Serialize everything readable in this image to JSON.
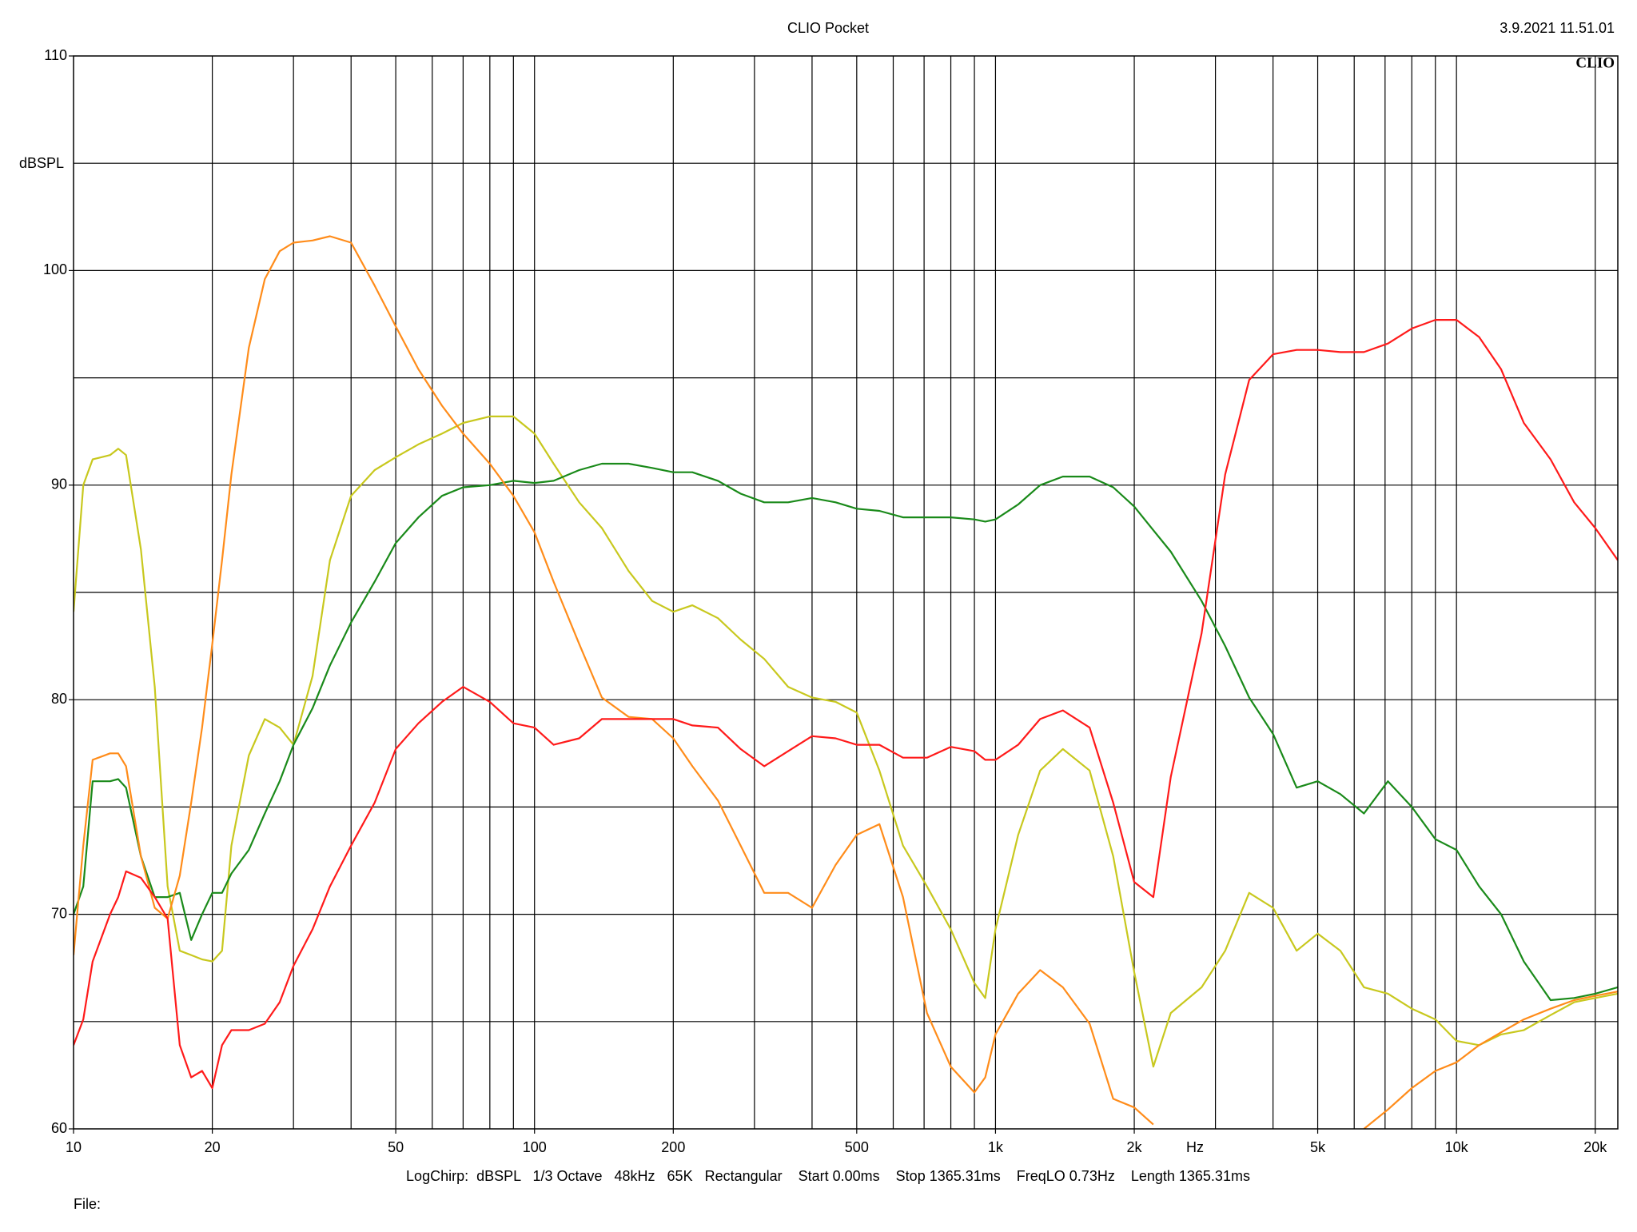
{
  "chart_data": {
    "type": "line",
    "title": "CLIO Pocket",
    "timestamp": "3.9.2021 11.51.01",
    "logo": "CLIO",
    "y_label": "dBSPL",
    "x_label": "Hz",
    "footer": "LogChirp:  dBSPL   1/3 Octave   48kHz   65K   Rectangular    Start 0.00ms    Stop 1365.31ms    FreqLO 0.73Hz    Length 1365.31ms",
    "file_label": "File:",
    "xscale": "log",
    "xlim": [
      10,
      22387
    ],
    "ylim": [
      60,
      110
    ],
    "xticks": [
      10,
      20,
      50,
      100,
      200,
      500,
      {
        "value": 1000,
        "label": "1k"
      },
      {
        "value": 2000,
        "label": "2k"
      },
      {
        "value": 5000,
        "label": "5k"
      },
      {
        "value": 10000,
        "label": "10k"
      },
      {
        "value": 20000,
        "label": "20k"
      }
    ],
    "yticks": [
      60,
      70,
      80,
      90,
      100,
      110
    ],
    "xgrid": [
      20,
      30,
      40,
      50,
      60,
      70,
      80,
      90,
      100,
      200,
      300,
      400,
      500,
      600,
      700,
      800,
      900,
      1000,
      2000,
      3000,
      4000,
      5000,
      6000,
      7000,
      8000,
      9000,
      10000,
      20000
    ],
    "ygrid": [
      65,
      70,
      75,
      80,
      85,
      90,
      95,
      100,
      105
    ],
    "x": [
      10,
      10.5,
      11,
      12,
      12.5,
      13,
      14,
      15,
      16,
      17,
      18,
      19,
      20,
      21,
      22,
      24,
      26,
      28,
      30,
      33,
      36,
      40,
      45,
      50,
      56,
      63,
      70,
      80,
      90,
      100,
      110,
      125,
      140,
      160,
      180,
      200,
      220,
      250,
      280,
      315,
      355,
      400,
      450,
      500,
      560,
      630,
      710,
      800,
      900,
      950,
      1000,
      1120,
      1250,
      1400,
      1600,
      1800,
      2000,
      2200,
      2400,
      2800,
      3150,
      3550,
      4000,
      4500,
      5000,
      5600,
      6300,
      7100,
      8000,
      9000,
      10000,
      11200,
      12500,
      14000,
      16000,
      18000,
      20000,
      22387
    ],
    "series": [
      {
        "color": "#c8c81e",
        "values": [
          84.1,
          90.0,
          91.2,
          91.4,
          91.7,
          91.4,
          87.0,
          80.6,
          71.3,
          68.3,
          68.1,
          67.9,
          67.8,
          68.3,
          73.2,
          77.4,
          79.1,
          78.7,
          77.9,
          81.1,
          86.5,
          89.5,
          90.7,
          91.3,
          91.9,
          92.4,
          92.9,
          93.2,
          93.2,
          92.4,
          91.0,
          89.2,
          88.0,
          86.0,
          84.6,
          84.1,
          84.4,
          83.8,
          82.8,
          81.9,
          80.6,
          80.1,
          79.9,
          79.4,
          76.7,
          73.2,
          71.3,
          69.3,
          66.8,
          66.1,
          69.3,
          73.7,
          76.7,
          77.7,
          76.7,
          72.7,
          67.3,
          62.9,
          65.4,
          66.6,
          68.3,
          71.0,
          70.3,
          68.3,
          69.1,
          68.3,
          66.6,
          66.3,
          65.6,
          65.1,
          64.1,
          63.9,
          64.4,
          64.6,
          65.3,
          65.9,
          66.1,
          66.3
        ]
      },
      {
        "color": "#1a8a1a",
        "values": [
          70.0,
          71.3,
          76.2,
          76.2,
          76.3,
          75.9,
          72.7,
          70.8,
          70.8,
          71.0,
          68.8,
          70.0,
          71.0,
          71.0,
          71.9,
          73.0,
          74.7,
          76.2,
          77.9,
          79.6,
          81.6,
          83.6,
          85.5,
          87.3,
          88.5,
          89.5,
          89.9,
          90.0,
          90.2,
          90.1,
          90.2,
          90.7,
          91.0,
          91.0,
          90.8,
          90.6,
          90.6,
          90.2,
          89.6,
          89.2,
          89.2,
          89.4,
          89.2,
          88.9,
          88.8,
          88.5,
          88.5,
          88.5,
          88.4,
          88.3,
          88.4,
          89.1,
          90.0,
          90.4,
          90.4,
          89.9,
          89.0,
          87.9,
          86.9,
          84.6,
          82.5,
          80.1,
          78.4,
          75.9,
          76.2,
          75.6,
          74.7,
          76.2,
          75.0,
          73.5,
          73.0,
          71.3,
          70.0,
          67.8,
          66.0,
          66.1,
          66.3,
          66.6
        ]
      },
      {
        "color": "#ff8c1a",
        "values": [
          68.1,
          73.2,
          77.2,
          77.5,
          77.5,
          76.9,
          72.7,
          70.3,
          69.8,
          71.8,
          75.2,
          78.7,
          82.6,
          86.5,
          90.5,
          96.4,
          99.6,
          100.9,
          101.3,
          101.4,
          101.6,
          101.3,
          99.3,
          97.4,
          95.4,
          93.7,
          92.4,
          91.0,
          89.5,
          87.8,
          85.5,
          82.6,
          80.1,
          79.2,
          79.1,
          78.2,
          76.9,
          75.3,
          73.2,
          71.0,
          71.0,
          70.3,
          72.3,
          73.7,
          74.2,
          70.8,
          65.4,
          62.9,
          61.7,
          62.4,
          64.4,
          66.3,
          67.4,
          66.6,
          64.9,
          61.4,
          61.0,
          60.2,
          null,
          null,
          null,
          null,
          null,
          null,
          null,
          null,
          60.0,
          60.9,
          61.9,
          62.7,
          63.1,
          63.9,
          64.5,
          65.1,
          65.6,
          66.0,
          66.2,
          66.4
        ]
      },
      {
        "color": "#ff1a1a",
        "values": [
          63.9,
          65.1,
          67.8,
          70.0,
          70.8,
          72.0,
          71.7,
          70.8,
          69.8,
          63.9,
          62.4,
          62.7,
          61.9,
          63.9,
          64.6,
          64.6,
          64.9,
          65.9,
          67.6,
          69.3,
          71.3,
          73.2,
          75.2,
          77.7,
          78.9,
          79.9,
          80.6,
          79.9,
          78.9,
          78.7,
          77.9,
          78.2,
          79.1,
          79.1,
          79.1,
          79.1,
          78.8,
          78.7,
          77.7,
          76.9,
          77.6,
          78.3,
          78.2,
          77.9,
          77.9,
          77.3,
          77.3,
          77.8,
          77.6,
          77.2,
          77.2,
          77.9,
          79.1,
          79.5,
          78.7,
          75.2,
          71.5,
          70.8,
          76.4,
          83.1,
          90.5,
          94.9,
          96.1,
          96.3,
          96.3,
          96.2,
          96.2,
          96.6,
          97.3,
          97.7,
          97.7,
          96.9,
          95.4,
          92.9,
          91.2,
          89.2,
          88.0,
          86.5
        ]
      }
    ]
  }
}
